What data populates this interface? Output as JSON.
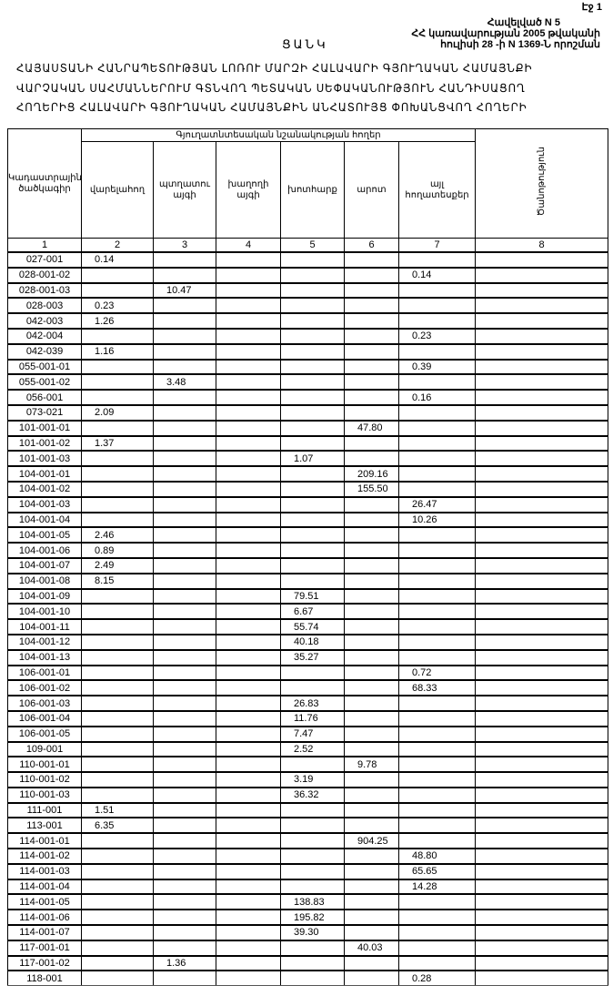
{
  "header": {
    "page": "Էջ 1",
    "annex": "Հավելված N 5",
    "government": "ՀՀ կառավարության 2005 թվականի",
    "decision": "հուլիսի 28 -ի N 1369-Ն որոշման"
  },
  "title": "ՑԱՆԿ",
  "subtitle_lines": [
    "ՀԱՅԱՍՏԱՆԻ ՀԱՆՐԱՊԵՏՈՒԹՅԱՆ ԼՈՌՈՒ ՄԱՐԶԻ ՀԱԼԱՎԱՐԻ ԳՅՈՒՂԱԿԱՆ ՀԱՄԱՅՆՔԻ",
    "ՎԱՐՉԱԿԱՆ ՍԱՀՄԱՆՆԵՐՈՒՄ ԳՏՆՎՈՂ ՊԵՏԱԿԱՆ ՍԵՓԱԿԱՆՈՒԹՅՈՒՆ ՀԱՆԴԻՍԱՑՈՂ",
    "ՀՈՂԵՐԻՑ ՀԱԼԱՎԱՐԻ ԳՅՈՒՂԱԿԱՆ ՀԱՄԱՅՆՔԻՆ ԱՆՀԱՏՈՒՅՑ ՓՈԽԱՆՑՎՈՂ ՀՈՂԵՐԻ"
  ],
  "table": {
    "code_header": "Կադաստրային ծածկագիր",
    "group_header": "Գյուղատնտեսական նշանակության հողեր",
    "columns": [
      "վարելահող",
      "պտղատու այգի",
      "խաղողի այգի",
      "խոտհարք",
      "արոտ",
      "այլ հողատեսքեր"
    ],
    "note_header": "Ծանոթություն",
    "column_numbers": [
      "1",
      "2",
      "3",
      "4",
      "5",
      "6",
      "7",
      "8"
    ],
    "rows": [
      {
        "code": "027-001",
        "values": [
          "0.14",
          "",
          "",
          "",
          "",
          "",
          ""
        ]
      },
      {
        "code": "028-001-02",
        "values": [
          "",
          "",
          "",
          "",
          "",
          "0.14",
          ""
        ]
      },
      {
        "code": "028-001-03",
        "values": [
          "",
          "10.47",
          "",
          "",
          "",
          "",
          ""
        ]
      },
      {
        "code": "028-003",
        "values": [
          "0.23",
          "",
          "",
          "",
          "",
          "",
          ""
        ]
      },
      {
        "code": "042-003",
        "values": [
          "1.26",
          "",
          "",
          "",
          "",
          "",
          ""
        ]
      },
      {
        "code": "042-004",
        "values": [
          "",
          "",
          "",
          "",
          "",
          "0.23",
          ""
        ]
      },
      {
        "code": "042-039",
        "values": [
          "1.16",
          "",
          "",
          "",
          "",
          "",
          ""
        ]
      },
      {
        "code": "055-001-01",
        "values": [
          "",
          "",
          "",
          "",
          "",
          "0.39",
          ""
        ]
      },
      {
        "code": "055-001-02",
        "values": [
          "",
          "3.48",
          "",
          "",
          "",
          "",
          ""
        ]
      },
      {
        "code": "056-001",
        "values": [
          "",
          "",
          "",
          "",
          "",
          "0.16",
          ""
        ]
      },
      {
        "code": "073-021",
        "values": [
          "2.09",
          "",
          "",
          "",
          "",
          "",
          ""
        ]
      },
      {
        "code": "101-001-01",
        "values": [
          "",
          "",
          "",
          "",
          "47.80",
          "",
          ""
        ]
      },
      {
        "code": "101-001-02",
        "values": [
          "1.37",
          "",
          "",
          "",
          "",
          "",
          ""
        ]
      },
      {
        "code": "101-001-03",
        "values": [
          "",
          "",
          "",
          "1.07",
          "",
          "",
          ""
        ]
      },
      {
        "code": "104-001-01",
        "values": [
          "",
          "",
          "",
          "",
          "209.16",
          "",
          ""
        ]
      },
      {
        "code": "104-001-02",
        "values": [
          "",
          "",
          "",
          "",
          "155.50",
          "",
          ""
        ]
      },
      {
        "code": "104-001-03",
        "values": [
          "",
          "",
          "",
          "",
          "",
          "26.47",
          ""
        ]
      },
      {
        "code": "104-001-04",
        "values": [
          "",
          "",
          "",
          "",
          "",
          "10.26",
          ""
        ]
      },
      {
        "code": "104-001-05",
        "values": [
          "2.46",
          "",
          "",
          "",
          "",
          "",
          ""
        ]
      },
      {
        "code": "104-001-06",
        "values": [
          "0.89",
          "",
          "",
          "",
          "",
          "",
          ""
        ]
      },
      {
        "code": "104-001-07",
        "values": [
          "2.49",
          "",
          "",
          "",
          "",
          "",
          ""
        ]
      },
      {
        "code": "104-001-08",
        "values": [
          "8.15",
          "",
          "",
          "",
          "",
          "",
          ""
        ]
      },
      {
        "code": "104-001-09",
        "values": [
          "",
          "",
          "",
          "79.51",
          "",
          "",
          ""
        ]
      },
      {
        "code": "104-001-10",
        "values": [
          "",
          "",
          "",
          "6.67",
          "",
          "",
          ""
        ]
      },
      {
        "code": "104-001-11",
        "values": [
          "",
          "",
          "",
          "55.74",
          "",
          "",
          ""
        ]
      },
      {
        "code": "104-001-12",
        "values": [
          "",
          "",
          "",
          "40.18",
          "",
          "",
          ""
        ]
      },
      {
        "code": "104-001-13",
        "values": [
          "",
          "",
          "",
          "35.27",
          "",
          "",
          ""
        ]
      },
      {
        "code": "106-001-01",
        "values": [
          "",
          "",
          "",
          "",
          "",
          "0.72",
          ""
        ]
      },
      {
        "code": "106-001-02",
        "values": [
          "",
          "",
          "",
          "",
          "",
          "68.33",
          ""
        ]
      },
      {
        "code": "106-001-03",
        "values": [
          "",
          "",
          "",
          "26.83",
          "",
          "",
          ""
        ]
      },
      {
        "code": "106-001-04",
        "values": [
          "",
          "",
          "",
          "11.76",
          "",
          "",
          ""
        ]
      },
      {
        "code": "106-001-05",
        "values": [
          "",
          "",
          "",
          "7.47",
          "",
          "",
          ""
        ]
      },
      {
        "code": "109-001",
        "values": [
          "",
          "",
          "",
          "2.52",
          "",
          "",
          ""
        ]
      },
      {
        "code": "110-001-01",
        "values": [
          "",
          "",
          "",
          "",
          "9.78",
          "",
          ""
        ]
      },
      {
        "code": "110-001-02",
        "values": [
          "",
          "",
          "",
          "3.19",
          "",
          "",
          ""
        ]
      },
      {
        "code": "110-001-03",
        "values": [
          "",
          "",
          "",
          "36.32",
          "",
          "",
          ""
        ]
      },
      {
        "code": "111-001",
        "values": [
          "1.51",
          "",
          "",
          "",
          "",
          "",
          ""
        ]
      },
      {
        "code": "113-001",
        "values": [
          "6.35",
          "",
          "",
          "",
          "",
          "",
          ""
        ]
      },
      {
        "code": "114-001-01",
        "values": [
          "",
          "",
          "",
          "",
          "904.25",
          "",
          ""
        ]
      },
      {
        "code": "114-001-02",
        "values": [
          "",
          "",
          "",
          "",
          "",
          "48.80",
          ""
        ]
      },
      {
        "code": "114-001-03",
        "values": [
          "",
          "",
          "",
          "",
          "",
          "65.65",
          ""
        ]
      },
      {
        "code": "114-001-04",
        "values": [
          "",
          "",
          "",
          "",
          "",
          "14.28",
          ""
        ]
      },
      {
        "code": "114-001-05",
        "values": [
          "",
          "",
          "",
          "138.83",
          "",
          "",
          ""
        ]
      },
      {
        "code": "114-001-06",
        "values": [
          "",
          "",
          "",
          "195.82",
          "",
          "",
          ""
        ]
      },
      {
        "code": "114-001-07",
        "values": [
          "",
          "",
          "",
          "39.30",
          "",
          "",
          ""
        ]
      },
      {
        "code": "117-001-01",
        "values": [
          "",
          "",
          "",
          "",
          "40.03",
          "",
          ""
        ]
      },
      {
        "code": "117-001-02",
        "values": [
          "",
          "1.36",
          "",
          "",
          "",
          "",
          ""
        ]
      },
      {
        "code": "118-001",
        "values": [
          "",
          "",
          "",
          "",
          "",
          "0.28",
          ""
        ]
      }
    ]
  }
}
